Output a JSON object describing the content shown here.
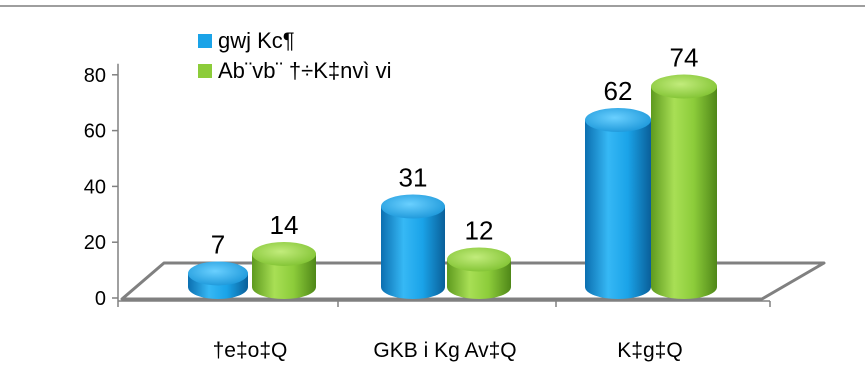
{
  "chart_data": {
    "type": "bar",
    "categories": [
      "†e‡o‡Q",
      "GKB i Kg Av‡Q",
      "K‡g‡Q"
    ],
    "series": [
      {
        "name": "gwj Kc¶",
        "values": [
          7,
          31,
          62
        ],
        "color": "#1aa3e8"
      },
      {
        "name": "Ab¨vb¨ †÷K‡nvì vi",
        "values": [
          14,
          12,
          74
        ],
        "color": "#8ccc3a"
      }
    ],
    "data_labels": [
      [
        "7",
        "31",
        "62"
      ],
      [
        "14",
        "12",
        "74"
      ]
    ],
    "ylim": [
      0,
      80
    ],
    "yticks": [
      "0",
      "20",
      "40",
      "60",
      "80"
    ],
    "legend": "top-left",
    "grid": false,
    "style": "3d-cylinder"
  }
}
